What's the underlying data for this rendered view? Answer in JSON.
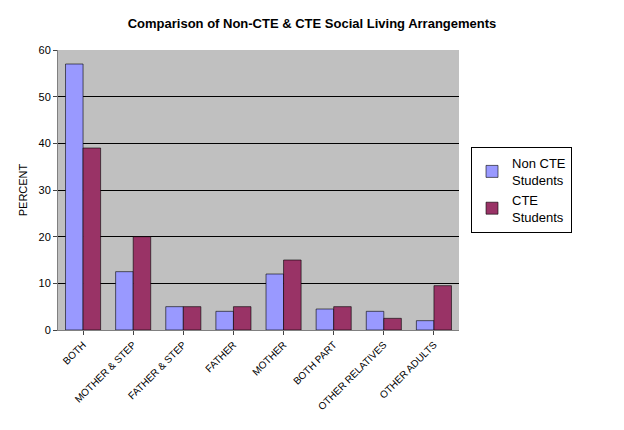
{
  "chart_data": {
    "type": "bar",
    "title": "Comparison of Non-CTE & CTE Social Living Arrangements",
    "y_label": "PERCENT",
    "categories": [
      "BOTH",
      "MOTHER & STEP",
      "FATHER & STEP",
      "FATHER",
      "MOTHER",
      "BOTH PART",
      "OTHER RELATIVES",
      "OTHER ADULTS"
    ],
    "series": [
      {
        "name": "Non CTE Students",
        "color": "#9999ff",
        "values": [
          57,
          12.5,
          5,
          4,
          12,
          4.5,
          4,
          2
        ]
      },
      {
        "name": "CTE Students",
        "color": "#993366",
        "values": [
          39,
          20,
          5,
          5,
          15,
          5,
          2.5,
          9.5
        ]
      }
    ],
    "ylim": [
      0,
      60
    ],
    "yticks": [
      0,
      10,
      20,
      30,
      40,
      50,
      60
    ],
    "grid": true,
    "legend": "right"
  }
}
